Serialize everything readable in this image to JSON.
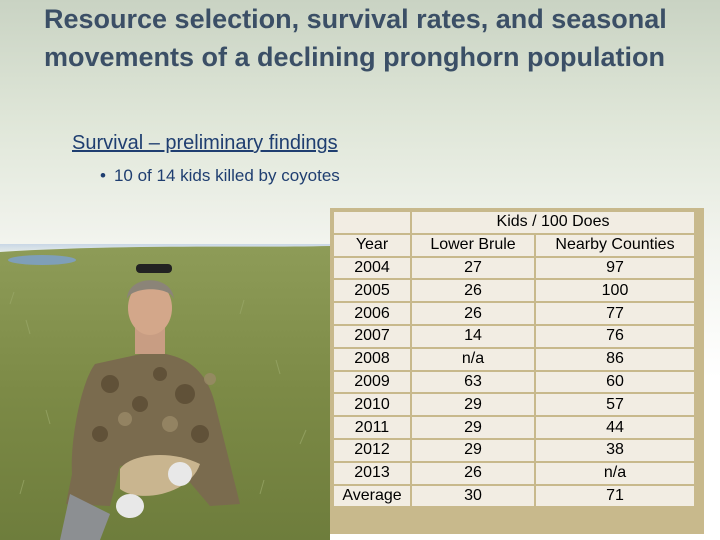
{
  "slide": {
    "title": "Resource selection, survival rates, and seasonal movements of a declining pronghorn population",
    "subtitle": "Survival – preliminary findings",
    "bullet": "10 of 14 kids killed by coyotes",
    "bullet_marker": "•"
  },
  "table": {
    "group_header": "Kids / 100 Does",
    "columns": [
      "Year",
      "Lower Brule",
      "Nearby Counties"
    ],
    "rows": [
      [
        "2004",
        "27",
        "97"
      ],
      [
        "2005",
        "26",
        "100"
      ],
      [
        "2006",
        "26",
        "77"
      ],
      [
        "2007",
        "14",
        "76"
      ],
      [
        "2008",
        "n/a",
        "86"
      ],
      [
        "2009",
        "63",
        "60"
      ],
      [
        "2010",
        "29",
        "57"
      ],
      [
        "2011",
        "29",
        "44"
      ],
      [
        "2012",
        "29",
        "38"
      ],
      [
        "2013",
        "26",
        "n/a"
      ],
      [
        "Average",
        "30",
        "71"
      ]
    ]
  },
  "colors": {
    "title": "#3b4f66",
    "text": "#1f3e70",
    "table_border": "#c8b98c",
    "cell_bg": "#f2ede3"
  },
  "photo": {
    "description_icon": "person-with-pronghorn-fawn-photo"
  }
}
